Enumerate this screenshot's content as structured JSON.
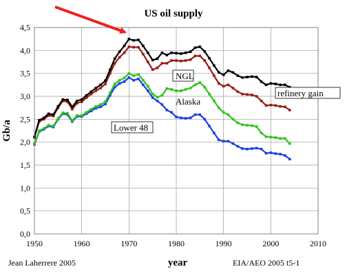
{
  "chart_data": {
    "type": "line",
    "title": "US oil supply",
    "ylabel": "Gb/a",
    "xlabel": "year",
    "xlim": [
      1950,
      2010
    ],
    "ylim": [
      0,
      4.5
    ],
    "xticks": [
      1950,
      1960,
      1970,
      1980,
      1990,
      2000,
      2010
    ],
    "yticks": [
      "0,0",
      "0,5",
      "1,0",
      "1,5",
      "2,0",
      "2,5",
      "3,0",
      "3,5",
      "4,0",
      "4,5"
    ],
    "grid": true,
    "x": [
      1950,
      1951,
      1952,
      1953,
      1954,
      1955,
      1956,
      1957,
      1958,
      1959,
      1960,
      1961,
      1962,
      1963,
      1964,
      1965,
      1966,
      1967,
      1968,
      1969,
      1970,
      1971,
      1972,
      1973,
      1974,
      1975,
      1976,
      1977,
      1978,
      1979,
      1980,
      1981,
      1982,
      1983,
      1984,
      1985,
      1986,
      1987,
      1988,
      1989,
      1990,
      1991,
      1992,
      1993,
      1994,
      1995,
      1996,
      1997,
      1998,
      1999,
      2000,
      2001,
      2002,
      2003,
      2004
    ],
    "series": [
      {
        "name": "Lower 48",
        "color": "#1a3fe6",
        "values": [
          1.95,
          2.23,
          2.28,
          2.35,
          2.33,
          2.5,
          2.62,
          2.6,
          2.45,
          2.56,
          2.56,
          2.62,
          2.68,
          2.74,
          2.77,
          2.83,
          3.02,
          3.2,
          3.28,
          3.32,
          3.41,
          3.35,
          3.38,
          3.25,
          3.12,
          2.97,
          2.9,
          2.82,
          2.7,
          2.65,
          2.55,
          2.53,
          2.52,
          2.53,
          2.6,
          2.6,
          2.5,
          2.35,
          2.2,
          2.05,
          2.02,
          2.02,
          1.97,
          1.91,
          1.86,
          1.85,
          1.86,
          1.87,
          1.85,
          1.76,
          1.77,
          1.75,
          1.74,
          1.71,
          1.63
        ]
      },
      {
        "name": "Alaska",
        "color": "#2ec41a",
        "values": [
          1.97,
          2.25,
          2.3,
          2.37,
          2.35,
          2.52,
          2.64,
          2.63,
          2.47,
          2.58,
          2.58,
          2.65,
          2.72,
          2.78,
          2.82,
          2.88,
          3.08,
          3.27,
          3.35,
          3.4,
          3.5,
          3.45,
          3.48,
          3.35,
          3.22,
          3.05,
          2.98,
          3.02,
          3.17,
          3.15,
          3.12,
          3.12,
          3.15,
          3.18,
          3.25,
          3.3,
          3.2,
          3.05,
          2.9,
          2.75,
          2.65,
          2.6,
          2.5,
          2.42,
          2.38,
          2.37,
          2.36,
          2.34,
          2.2,
          2.12,
          2.11,
          2.1,
          2.08,
          2.08,
          1.97
        ]
      },
      {
        "name": "NGL",
        "color": "#9b1a14",
        "values": [
          2.1,
          2.45,
          2.5,
          2.58,
          2.57,
          2.75,
          2.9,
          2.88,
          2.72,
          2.85,
          2.88,
          2.97,
          3.05,
          3.12,
          3.18,
          3.27,
          3.5,
          3.72,
          3.85,
          3.95,
          4.08,
          4.07,
          4.07,
          3.92,
          3.75,
          3.58,
          3.62,
          3.72,
          3.72,
          3.78,
          3.78,
          3.77,
          3.78,
          3.8,
          3.88,
          3.88,
          3.78,
          3.62,
          3.45,
          3.28,
          3.22,
          3.25,
          3.18,
          3.1,
          3.05,
          3.04,
          3.03,
          3.0,
          2.9,
          2.8,
          2.81,
          2.8,
          2.78,
          2.77,
          2.7
        ]
      },
      {
        "name": "refinery gain",
        "color": "#000000",
        "values": [
          2.12,
          2.48,
          2.53,
          2.62,
          2.6,
          2.78,
          2.93,
          2.92,
          2.77,
          2.9,
          2.93,
          3.02,
          3.1,
          3.18,
          3.25,
          3.34,
          3.58,
          3.82,
          3.97,
          4.1,
          4.25,
          4.22,
          4.23,
          4.1,
          3.95,
          3.79,
          3.82,
          3.95,
          3.9,
          3.95,
          3.94,
          3.93,
          3.95,
          3.97,
          4.06,
          4.08,
          3.98,
          3.83,
          3.67,
          3.52,
          3.47,
          3.56,
          3.52,
          3.45,
          3.41,
          3.42,
          3.43,
          3.42,
          3.32,
          3.25,
          3.28,
          3.27,
          3.25,
          3.25,
          3.2
        ]
      }
    ],
    "annotations": [
      {
        "text": "NGL",
        "boxed": true
      },
      {
        "text": "Alaska",
        "boxed": false
      },
      {
        "text": "Lower 48",
        "boxed": true
      },
      {
        "text": "refinery gain",
        "boxed": true
      },
      {
        "text": "Jean Laherrere 2005",
        "boxed": false
      },
      {
        "text": "EIA/AEO 2005 t5-1",
        "boxed": false
      }
    ],
    "arrow": {
      "color": "#e8251c",
      "target_x": 1970,
      "target_y": 4.25
    },
    "colors": {
      "grid": "#9a9a9a",
      "frame": "#808080"
    }
  }
}
